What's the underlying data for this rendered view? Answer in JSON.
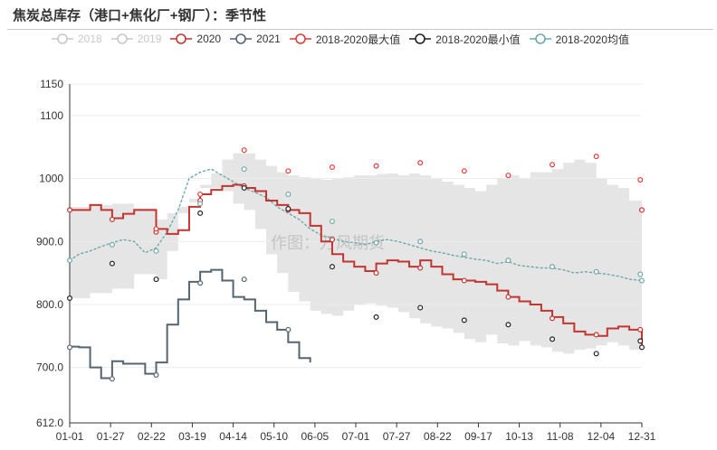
{
  "title": "焦炭总库存（港口+焦化厂+钢厂）：季节性",
  "watermark": "作图：万风期货",
  "colors": {
    "s2018": "#c8c8c8",
    "s2019": "#c8c8c8",
    "s2020": "#c23531",
    "s2021": "#546570",
    "max": "#e03c3c",
    "min": "#222222",
    "avg": "#6fa8a8",
    "band": "#e5e5e5"
  },
  "chart_data": {
    "type": "line",
    "categories": [
      "01-01",
      "01-27",
      "02-22",
      "03-19",
      "04-14",
      "05-10",
      "06-05",
      "07-01",
      "07-27",
      "08-22",
      "09-17",
      "10-13",
      "11-08",
      "12-04",
      "12-31"
    ],
    "ylim": [
      612,
      1150
    ],
    "yticks": [
      {
        "value": 612,
        "label": "612.0"
      },
      {
        "value": 700,
        "label": "700.0"
      },
      {
        "value": 800,
        "label": "800.0"
      },
      {
        "value": 900,
        "label": "900.0"
      },
      {
        "value": 1000,
        "label": "1000"
      },
      {
        "value": 1100,
        "label": "1100"
      },
      {
        "value": 1150,
        "label": "1150"
      }
    ],
    "legend": [
      {
        "name": "2018",
        "color": "#c8c8c8",
        "active": false
      },
      {
        "name": "2019",
        "color": "#c8c8c8",
        "active": false
      },
      {
        "name": "2020",
        "color": "#c23531",
        "active": true
      },
      {
        "name": "2021",
        "color": "#546570",
        "active": true
      },
      {
        "name": "2018-2020最大值",
        "color": "#e03c3c",
        "active": true
      },
      {
        "name": "2018-2020最小值",
        "color": "#222222",
        "active": true
      },
      {
        "name": "2018-2020均值",
        "color": "#6fa8a8",
        "active": true
      }
    ],
    "series": [
      {
        "name": "2020",
        "style": "step",
        "x": [
          1,
          14,
          21,
          28,
          35,
          42,
          56,
          63,
          70,
          77,
          84,
          91,
          98,
          105,
          112,
          119,
          126,
          133,
          140,
          147,
          154,
          161,
          168,
          175,
          182,
          189,
          196,
          203,
          210,
          217,
          224,
          231,
          238,
          245,
          252,
          259,
          266,
          273,
          280,
          287,
          294,
          301,
          308,
          315,
          322,
          329,
          336,
          343,
          350,
          357,
          365
        ],
        "values": [
          950,
          958,
          950,
          937,
          944,
          950,
          920,
          912,
          918,
          955,
          975,
          982,
          988,
          990,
          985,
          980,
          965,
          958,
          950,
          945,
          925,
          900,
          880,
          868,
          860,
          853,
          865,
          870,
          868,
          860,
          870,
          860,
          848,
          840,
          838,
          836,
          832,
          822,
          812,
          805,
          800,
          790,
          780,
          770,
          757,
          752,
          750,
          762,
          765,
          760,
          735
        ]
      },
      {
        "name": "2021",
        "style": "step",
        "x": [
          1,
          7,
          14,
          21,
          28,
          35,
          42,
          49,
          56,
          63,
          70,
          77,
          84,
          91,
          98,
          105,
          112,
          119,
          126,
          133,
          140,
          147,
          154
        ],
        "values": [
          733,
          732,
          700,
          683,
          710,
          706,
          706,
          690,
          708,
          768,
          808,
          836,
          852,
          855,
          838,
          812,
          808,
          790,
          772,
          760,
          740,
          715,
          708
        ]
      },
      {
        "name": "2018-2020最大值",
        "style": "band-upper",
        "x": [
          1,
          14,
          28,
          42,
          56,
          63,
          70,
          77,
          84,
          91,
          98,
          105,
          112,
          119,
          126,
          133,
          140,
          147,
          154,
          161,
          168,
          175,
          182,
          189,
          196,
          203,
          210,
          217,
          224,
          231,
          238,
          245,
          252,
          259,
          266,
          273,
          280,
          287,
          294,
          301,
          308,
          315,
          322,
          329,
          336,
          343,
          350,
          357,
          365
        ],
        "values": [
          955,
          958,
          960,
          953,
          935,
          945,
          955,
          968,
          990,
          1008,
          1030,
          1040,
          1040,
          1030,
          1020,
          1010,
          1005,
          1002,
          1000,
          998,
          1000,
          1002,
          1005,
          1005,
          1007,
          1008,
          1005,
          1008,
          1005,
          1000,
          995,
          990,
          985,
          980,
          990,
          1000,
          1005,
          1000,
          1010,
          1010,
          1015,
          1025,
          1030,
          1025,
          1000,
          990,
          985,
          965,
          948
        ]
      },
      {
        "name": "2018-2020最小值",
        "style": "band-lower",
        "x": [
          1,
          14,
          28,
          42,
          56,
          63,
          70,
          77,
          84,
          91,
          98,
          105,
          112,
          119,
          126,
          133,
          140,
          147,
          154,
          161,
          168,
          175,
          182,
          189,
          196,
          203,
          210,
          217,
          224,
          231,
          238,
          245,
          252,
          259,
          266,
          273,
          280,
          287,
          294,
          301,
          308,
          315,
          322,
          329,
          336,
          343,
          350,
          357,
          365
        ],
        "values": [
          810,
          818,
          825,
          848,
          840,
          885,
          945,
          962,
          985,
          985,
          980,
          960,
          950,
          920,
          880,
          850,
          820,
          805,
          790,
          785,
          782,
          790,
          800,
          802,
          798,
          795,
          788,
          778,
          770,
          765,
          762,
          755,
          745,
          740,
          752,
          738,
          735,
          742,
          735,
          732,
          725,
          722,
          728,
          730,
          735,
          740,
          735,
          728,
          725
        ]
      },
      {
        "name": "2018-2020均值",
        "style": "dotted",
        "x": [
          1,
          7,
          14,
          21,
          28,
          35,
          42,
          49,
          56,
          63,
          70,
          77,
          84,
          91,
          98,
          105,
          112,
          119,
          126,
          133,
          140,
          147,
          154,
          161,
          168,
          175,
          182,
          189,
          196,
          203,
          210,
          217,
          224,
          231,
          238,
          245,
          252,
          259,
          266,
          273,
          280,
          287,
          294,
          301,
          308,
          315,
          322,
          329,
          336,
          343,
          350,
          357,
          365
        ],
        "values": [
          870,
          880,
          885,
          892,
          898,
          903,
          900,
          882,
          890,
          915,
          950,
          1000,
          1010,
          1015,
          1005,
          995,
          985,
          978,
          970,
          955,
          945,
          935,
          920,
          910,
          905,
          900,
          898,
          895,
          900,
          903,
          900,
          895,
          890,
          885,
          882,
          878,
          875,
          872,
          870,
          865,
          868,
          862,
          860,
          858,
          858,
          855,
          850,
          852,
          850,
          848,
          845,
          840,
          838
        ]
      }
    ],
    "markers": {
      "2020": [
        [
          1,
          950
        ],
        [
          28,
          935
        ],
        [
          56,
          915
        ],
        [
          84,
          965
        ],
        [
          112,
          988
        ],
        [
          140,
          950
        ],
        [
          168,
          903
        ],
        [
          196,
          850
        ],
        [
          224,
          858
        ],
        [
          252,
          838
        ],
        [
          280,
          812
        ],
        [
          308,
          778
        ],
        [
          336,
          752
        ],
        [
          364,
          760
        ],
        [
          365,
          950
        ]
      ],
      "2021": [
        [
          1,
          732
        ],
        [
          28,
          682
        ],
        [
          56,
          688
        ],
        [
          84,
          834
        ],
        [
          112,
          840
        ],
        [
          140,
          760
        ]
      ],
      "2018-2020最大值": [
        [
          56,
          920
        ],
        [
          84,
          975
        ],
        [
          112,
          1045
        ],
        [
          140,
          1012
        ],
        [
          168,
          1018
        ],
        [
          196,
          1020
        ],
        [
          224,
          1025
        ],
        [
          252,
          1012
        ],
        [
          280,
          1005
        ],
        [
          308,
          1022
        ],
        [
          336,
          1035
        ],
        [
          364,
          998
        ],
        [
          365,
          950
        ]
      ],
      "2018-2020最小值": [
        [
          1,
          810
        ],
        [
          28,
          865
        ],
        [
          56,
          840
        ],
        [
          84,
          945
        ],
        [
          112,
          985
        ],
        [
          140,
          952
        ],
        [
          168,
          860
        ],
        [
          196,
          780
        ],
        [
          224,
          795
        ],
        [
          252,
          775
        ],
        [
          280,
          768
        ],
        [
          308,
          745
        ],
        [
          336,
          722
        ],
        [
          364,
          742
        ],
        [
          365,
          732
        ]
      ],
      "2018-2020均值": [
        [
          1,
          870
        ],
        [
          28,
          895
        ],
        [
          56,
          885
        ],
        [
          84,
          960
        ],
        [
          112,
          1015
        ],
        [
          140,
          975
        ],
        [
          168,
          932
        ],
        [
          196,
          898
        ],
        [
          224,
          900
        ],
        [
          252,
          880
        ],
        [
          280,
          870
        ],
        [
          308,
          860
        ],
        [
          336,
          852
        ],
        [
          364,
          848
        ],
        [
          365,
          838
        ]
      ]
    }
  }
}
